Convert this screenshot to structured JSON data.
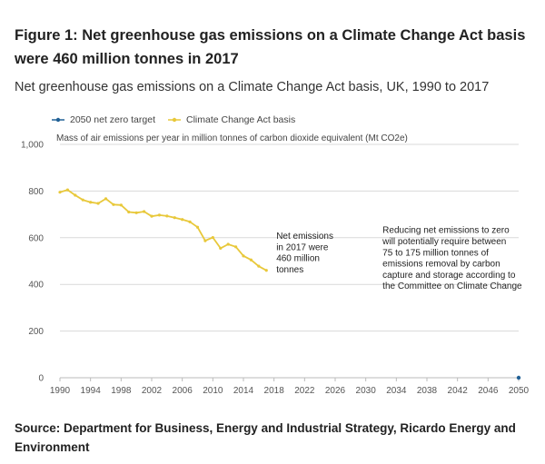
{
  "figure": {
    "title": "Figure 1: Net greenhouse gas emissions on a Climate Change Act basis were 460 million tonnes in 2017",
    "subtitle": "Net greenhouse gas emissions on a Climate Change Act basis, UK, 1990 to 2017",
    "source": "Source: Department for Business, Energy and Industrial Strategy, Ricardo Energy and Environment"
  },
  "colors": {
    "target": "#206095",
    "emissions": "#e8c83a",
    "grid": "#d9d9d9",
    "axis_text": "#555555"
  },
  "chart_data": {
    "type": "line",
    "ylabel": "Mass of air emissions per year in million tonnes of carbon dioxide equivalent (Mt CO2e)",
    "xlim": [
      1990,
      2050
    ],
    "ylim": [
      0,
      1000
    ],
    "x_ticks": [
      1990,
      1994,
      1998,
      2002,
      2006,
      2010,
      2014,
      2018,
      2022,
      2026,
      2030,
      2034,
      2038,
      2042,
      2046,
      2050
    ],
    "y_ticks": [
      0,
      200,
      400,
      600,
      800,
      1000
    ],
    "y_tick_labels": [
      "0",
      "200",
      "400",
      "600",
      "800",
      "1,000"
    ],
    "grid": "horizontal",
    "legend_position": "top-left",
    "series": [
      {
        "name": "2050 net zero target",
        "x": [
          2050
        ],
        "values": [
          0
        ]
      },
      {
        "name": "Climate Change Act basis",
        "x": [
          1990,
          1991,
          1992,
          1993,
          1994,
          1995,
          1996,
          1997,
          1998,
          1999,
          2000,
          2001,
          2002,
          2003,
          2004,
          2005,
          2006,
          2007,
          2008,
          2009,
          2010,
          2011,
          2012,
          2013,
          2014,
          2015,
          2016,
          2017
        ],
        "values": [
          795,
          805,
          782,
          762,
          752,
          747,
          767,
          742,
          740,
          710,
          707,
          712,
          692,
          697,
          693,
          686,
          678,
          668,
          645,
          587,
          601,
          555,
          572,
          561,
          522,
          505,
          478,
          460
        ]
      }
    ],
    "annotations": [
      {
        "lines": [
          "Net emissions",
          "in 2017 were",
          "460 million",
          "tonnes"
        ],
        "x": 2018.3,
        "y": 595
      },
      {
        "lines": [
          "Reducing net emissions to zero",
          "will potentially require between",
          "75 to 175 million tonnes of",
          "emissions removal by carbon",
          "capture and storage according to",
          "the Committee on Climate Change"
        ],
        "x": 2032.2,
        "y": 620
      }
    ]
  }
}
